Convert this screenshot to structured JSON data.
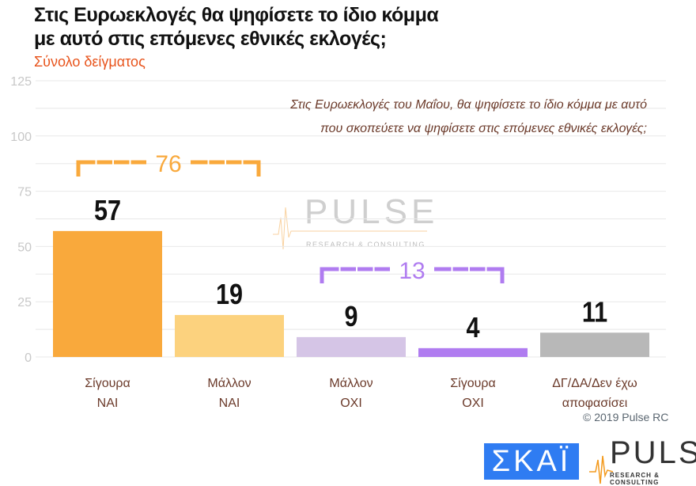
{
  "title_line1": "Στις Ευρωεκλογές θα ψηφίσετε το ίδιο κόμμα",
  "title_line2": "με αυτό στις επόμενες εθνικές εκλογές;",
  "subtitle": "Σύνολο δείγματος",
  "question_line1": "Στις Ευρωεκλογές του Μαΐου, θα ψηφίσετε το ίδιο κόμμα με αυτό",
  "question_line2": "που σκοπεύετε να ψηφίσετε στις επόμενες εθνικές εκλογές;",
  "copyright": "© 2019 Pulse RC",
  "logos": {
    "skai": "ΣΚΑΪ",
    "pulse": "PULSE",
    "pulse_sub": "RESEARCH & CONSULTING",
    "watermark_word": "PULSE",
    "watermark_sub": "RESEARCH & CONSULTING"
  },
  "chart_data": {
    "type": "bar",
    "categories": [
      [
        "Σίγουρα",
        "ΝΑΙ"
      ],
      [
        "Μάλλον",
        "ΝΑΙ"
      ],
      [
        "Μάλλον",
        "ΟΧΙ"
      ],
      [
        "Σίγουρα",
        "ΟΧΙ"
      ],
      [
        "ΔΓ/ΔΑ/Δεν έχω",
        "αποφασίσει"
      ]
    ],
    "values": [
      57,
      19,
      9,
      4,
      11
    ],
    "colors": [
      "#F9A93C",
      "#FCD27E",
      "#D5C5E6",
      "#B07CF0",
      "#B8B8B8"
    ],
    "ylim": [
      0,
      125
    ],
    "yticks": [
      0,
      25,
      50,
      75,
      100,
      125
    ],
    "grid": true,
    "groups": [
      {
        "label": "76",
        "from": 0,
        "to": 1,
        "color": "#F9A93C"
      },
      {
        "label": "13",
        "from": 2,
        "to": 3,
        "color": "#B07CF0"
      }
    ]
  }
}
